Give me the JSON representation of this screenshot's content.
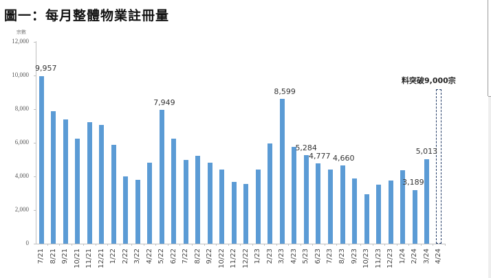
{
  "title": "圖一：每月整體物業註冊量",
  "chart_data": {
    "type": "bar",
    "title": "圖一：每月整體物業註冊量",
    "xlabel": "",
    "ylabel": "宗數",
    "ylim": [
      0,
      12000
    ],
    "yticks": [
      0,
      2000,
      4000,
      6000,
      8000,
      10000,
      12000
    ],
    "ytick_labels": [
      "0",
      "2,000",
      "4,000",
      "6,000",
      "8,000",
      "10,000",
      "12,000"
    ],
    "grid": false,
    "legend": null,
    "categories": [
      "7/21",
      "8/21",
      "9/21",
      "10/21",
      "11/21",
      "12/21",
      "1/22",
      "2/22",
      "3/22",
      "4/22",
      "5/22",
      "6/22",
      "7/22",
      "8/22",
      "9/22",
      "10/22",
      "11/22",
      "12/22",
      "1/23",
      "2/23",
      "3/23",
      "4/23",
      "5/23",
      "6/23",
      "7/23",
      "8/23",
      "9/23",
      "10/23",
      "11/23",
      "12/23",
      "1/24",
      "2/24",
      "3/24",
      "4/24"
    ],
    "values": [
      9957,
      7865,
      7390,
      6230,
      7210,
      7060,
      5890,
      3990,
      3810,
      4830,
      7949,
      6260,
      4970,
      5220,
      4830,
      4420,
      3690,
      3550,
      4410,
      5970,
      8599,
      5750,
      5284,
      4777,
      4420,
      4660,
      3890,
      2940,
      3510,
      3740,
      4380,
      3189,
      5013,
      null
    ],
    "projected": {
      "category": "4/24",
      "value": 9000,
      "style": "dashed outline",
      "annotation": "料突破9,000宗"
    },
    "data_labels": [
      {
        "category": "7/21",
        "text": "9,957"
      },
      {
        "category": "5/22",
        "text": "7,949"
      },
      {
        "category": "3/23",
        "text": "8,599"
      },
      {
        "category": "5/23",
        "text": "5,284"
      },
      {
        "category": "6/23",
        "text": "4,777"
      },
      {
        "category": "8/23",
        "text": "4,660"
      },
      {
        "category": "2/24",
        "text": "3,189"
      },
      {
        "category": "3/24",
        "text": "5,013"
      }
    ],
    "bar_color": "#5b9bd5",
    "projection_color": "#1f3864"
  },
  "labels": {
    "y_unit": "宗數",
    "annotation": "料突破9,000宗",
    "ytick_labels": [
      "0",
      "2,000",
      "4,000",
      "6,000",
      "8,000",
      "10,000",
      "12,000"
    ]
  }
}
